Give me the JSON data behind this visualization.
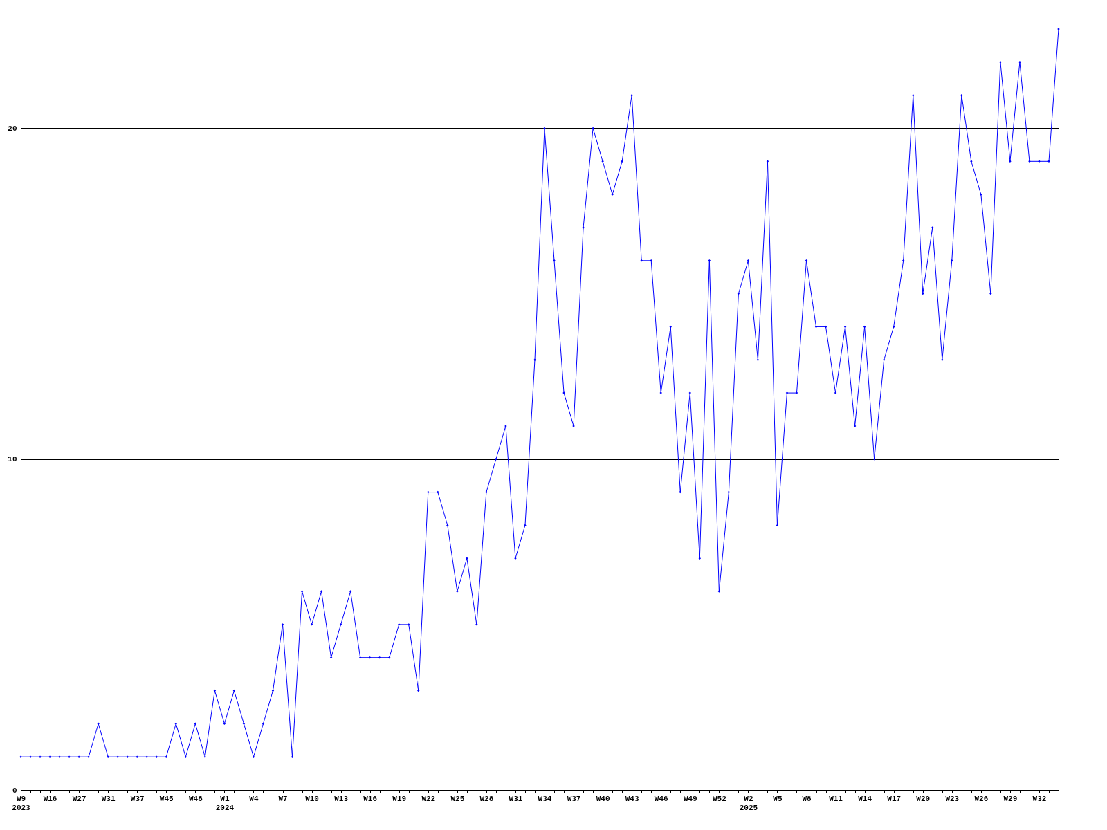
{
  "chart_data": {
    "type": "line",
    "categories": [
      "W9\n2023",
      null,
      null,
      "W16",
      null,
      null,
      "W27",
      null,
      null,
      "W31",
      null,
      null,
      "W37",
      null,
      null,
      "W45",
      null,
      null,
      "W48",
      null,
      null,
      "W1\n2024",
      null,
      null,
      "W4",
      null,
      null,
      "W7",
      null,
      null,
      "W10",
      null,
      null,
      "W13",
      null,
      null,
      "W16",
      null,
      null,
      "W19",
      null,
      null,
      "W22",
      null,
      null,
      "W25",
      null,
      null,
      "W28",
      null,
      null,
      "W31",
      null,
      null,
      "W34",
      null,
      null,
      "W37",
      null,
      null,
      "W40",
      null,
      null,
      "W43",
      null,
      null,
      "W46",
      null,
      null,
      "W49",
      null,
      null,
      "W52",
      null,
      null,
      "W2\n2025",
      null,
      null,
      "W5",
      null,
      null,
      "W8",
      null,
      null,
      "W11",
      null,
      null,
      "W14",
      null,
      null,
      "W17",
      null,
      null,
      "W20",
      null,
      null,
      "W23",
      null,
      null,
      "W26",
      null,
      null,
      "W29",
      null,
      null,
      "W32",
      null,
      null
    ],
    "series": [
      {
        "color": "#0000ff",
        "values": [
          1,
          1,
          1,
          1,
          1,
          1,
          1,
          1,
          2,
          1,
          1,
          1,
          1,
          1,
          1,
          1,
          2,
          1,
          2,
          1,
          3,
          2,
          3,
          2,
          1,
          2,
          3,
          5,
          1,
          6,
          5,
          6,
          4,
          5,
          6,
          4,
          4,
          4,
          4,
          5,
          5,
          3,
          9,
          9,
          8,
          6,
          7,
          5,
          9,
          10,
          11,
          7,
          8,
          13,
          20,
          16,
          12,
          11,
          17,
          20,
          19,
          18,
          19,
          21,
          16,
          16,
          12,
          14,
          9,
          12,
          7,
          16,
          6,
          9,
          15,
          16,
          13,
          19,
          8,
          12,
          12,
          16,
          14,
          14,
          12,
          14,
          11,
          14,
          10,
          13,
          14,
          16,
          21,
          15,
          17,
          13,
          16,
          21,
          19,
          18,
          15,
          22,
          19,
          22,
          19,
          19,
          19,
          23
        ]
      }
    ],
    "ylim": [
      0,
      23
    ],
    "yticks": [
      0,
      10,
      20
    ],
    "grid": "y",
    "marker": "diamond",
    "line_style": "solid",
    "legend": false
  }
}
